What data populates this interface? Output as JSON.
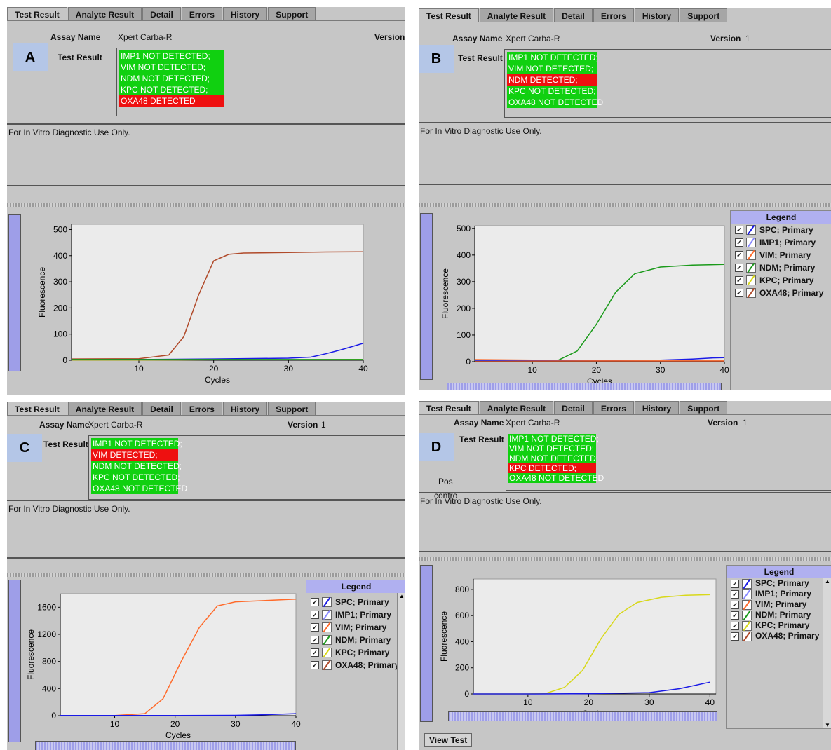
{
  "tabs": [
    "Test Result",
    "Analyte Result",
    "Detail",
    "Errors",
    "History",
    "Support"
  ],
  "labels": {
    "assay_name": "Assay Name",
    "assay_value": "Xpert Carba-R",
    "version": "Version",
    "version_value": "1",
    "test_result": "Test Result",
    "note": "For In Vitro Diagnostic Use Only.",
    "legend": "Legend",
    "view_test": "View Test",
    "pos_control_a": "Pos",
    "pos_control_b": "contro"
  },
  "legend_items": [
    "SPC; Primary",
    "IMP1; Primary",
    "VIM; Primary",
    "NDM; Primary",
    "KPC; Primary",
    "OXA48; Primary"
  ],
  "series_colors": {
    "SPC": "#1a1ae6",
    "IMP1": "#8a8aff",
    "VIM": "#ff6a2a",
    "NDM": "#1a9a1a",
    "KPC": "#d8d81a",
    "OXA48": "#b04a2a"
  },
  "panels": {
    "A": {
      "letter": "A",
      "results": [
        {
          "text": "IMP1 NOT DETECTED;",
          "status": "not_detected"
        },
        {
          "text": "VIM NOT DETECTED;",
          "status": "not_detected"
        },
        {
          "text": "NDM NOT DETECTED;",
          "status": "not_detected"
        },
        {
          "text": "KPC NOT DETECTED;",
          "status": "not_detected"
        },
        {
          "text": "OXA48 DETECTED",
          "status": "detected"
        }
      ]
    },
    "B": {
      "letter": "B",
      "results": [
        {
          "text": "IMP1 NOT DETECTED;",
          "status": "not_detected"
        },
        {
          "text": "VIM NOT DETECTED;",
          "status": "not_detected"
        },
        {
          "text": "NDM DETECTED;",
          "status": "detected"
        },
        {
          "text": "KPC NOT DETECTED;",
          "status": "not_detected"
        },
        {
          "text": "OXA48 NOT DETECTED",
          "status": "not_detected"
        }
      ]
    },
    "C": {
      "letter": "C",
      "results": [
        {
          "text": "IMP1 NOT DETECTED;",
          "status": "not_detected"
        },
        {
          "text": "VIM DETECTED;",
          "status": "detected"
        },
        {
          "text": "NDM NOT DETECTED;",
          "status": "not_detected"
        },
        {
          "text": "KPC NOT DETECTED;",
          "status": "not_detected"
        },
        {
          "text": "OXA48 NOT DETECTED",
          "status": "not_detected"
        }
      ]
    },
    "D": {
      "letter": "D",
      "results": [
        {
          "text": "IMP1 NOT DETECTED;",
          "status": "not_detected"
        },
        {
          "text": "VIM NOT DETECTED;",
          "status": "not_detected"
        },
        {
          "text": "NDM NOT DETECTED;",
          "status": "not_detected"
        },
        {
          "text": "KPC DETECTED;",
          "status": "detected"
        },
        {
          "text": "OXA48 NOT DETECTED",
          "status": "not_detected"
        }
      ]
    }
  },
  "chart_data": [
    {
      "panel": "A",
      "type": "line",
      "xlabel": "Cycles",
      "ylabel": "Fluorescence",
      "xlim": [
        1,
        40
      ],
      "ylim": [
        0,
        520
      ],
      "xticks": [
        10,
        20,
        30,
        40
      ],
      "yticks": [
        0,
        100,
        200,
        300,
        400,
        500
      ],
      "series": [
        {
          "name": "OXA48",
          "color": "#b04a2a",
          "x": [
            1,
            10,
            14,
            16,
            18,
            20,
            22,
            24,
            30,
            35,
            40
          ],
          "y": [
            5,
            6,
            20,
            90,
            250,
            380,
            405,
            410,
            412,
            414,
            415
          ]
        },
        {
          "name": "SPC",
          "color": "#1a1ae6",
          "x": [
            1,
            10,
            20,
            30,
            33,
            35,
            37,
            40
          ],
          "y": [
            2,
            3,
            5,
            8,
            12,
            25,
            40,
            65
          ]
        },
        {
          "name": "KPC",
          "color": "#d8d81a",
          "x": [
            1,
            10,
            20,
            30,
            40
          ],
          "y": [
            1,
            1,
            2,
            2,
            3
          ]
        },
        {
          "name": "NDM",
          "color": "#1a9a1a",
          "x": [
            1,
            10,
            20,
            30,
            40
          ],
          "y": [
            3,
            3,
            3,
            3,
            3
          ]
        }
      ]
    },
    {
      "panel": "B",
      "type": "line",
      "xlabel": "Cycles",
      "ylabel": "Fluorescence",
      "xlim": [
        1,
        40
      ],
      "ylim": [
        0,
        510
      ],
      "xticks": [
        10,
        20,
        30,
        40
      ],
      "yticks": [
        0,
        100,
        200,
        300,
        400,
        500
      ],
      "series": [
        {
          "name": "NDM",
          "color": "#1a9a1a",
          "x": [
            1,
            10,
            14,
            17,
            20,
            23,
            26,
            30,
            35,
            40
          ],
          "y": [
            2,
            2,
            5,
            40,
            140,
            260,
            330,
            355,
            362,
            365
          ]
        },
        {
          "name": "SPC",
          "color": "#1a1ae6",
          "x": [
            1,
            10,
            20,
            30,
            35,
            38,
            40
          ],
          "y": [
            3,
            3,
            4,
            6,
            10,
            14,
            15
          ]
        },
        {
          "name": "VIM",
          "color": "#ff6a2a",
          "x": [
            1,
            10,
            20,
            30,
            40
          ],
          "y": [
            8,
            6,
            5,
            5,
            5
          ]
        },
        {
          "name": "OXA48",
          "color": "#b04a2a",
          "x": [
            1,
            10,
            20,
            30,
            40
          ],
          "y": [
            1,
            1,
            1,
            1,
            1
          ]
        }
      ]
    },
    {
      "panel": "C",
      "type": "line",
      "xlabel": "Cycles",
      "ylabel": "Fluorescence",
      "xlim": [
        1,
        40
      ],
      "ylim": [
        0,
        1800
      ],
      "xticks": [
        10,
        20,
        30,
        40
      ],
      "yticks": [
        0,
        400,
        800,
        1200,
        1600
      ],
      "series": [
        {
          "name": "VIM",
          "color": "#ff6a2a",
          "x": [
            1,
            10,
            15,
            18,
            21,
            24,
            27,
            30,
            35,
            40
          ],
          "y": [
            3,
            3,
            30,
            250,
            800,
            1300,
            1620,
            1680,
            1700,
            1720
          ]
        },
        {
          "name": "SPC",
          "color": "#1a1ae6",
          "x": [
            1,
            10,
            20,
            30,
            35,
            40
          ],
          "y": [
            2,
            2,
            3,
            5,
            15,
            30
          ]
        }
      ]
    },
    {
      "panel": "D",
      "type": "line",
      "xlabel": "Cycles",
      "ylabel": "Fluorescence",
      "xlim": [
        1,
        41
      ],
      "ylim": [
        0,
        880
      ],
      "xticks": [
        10,
        20,
        30,
        40
      ],
      "yticks": [
        0,
        200,
        400,
        600,
        800
      ],
      "series": [
        {
          "name": "KPC",
          "color": "#d8d81a",
          "x": [
            1,
            10,
            13,
            16,
            19,
            22,
            25,
            28,
            32,
            36,
            40
          ],
          "y": [
            0,
            0,
            5,
            50,
            180,
            420,
            610,
            700,
            740,
            755,
            760
          ]
        },
        {
          "name": "SPC",
          "color": "#1a1ae6",
          "x": [
            1,
            10,
            20,
            30,
            35,
            40
          ],
          "y": [
            0,
            0,
            2,
            10,
            40,
            90
          ]
        }
      ]
    }
  ]
}
